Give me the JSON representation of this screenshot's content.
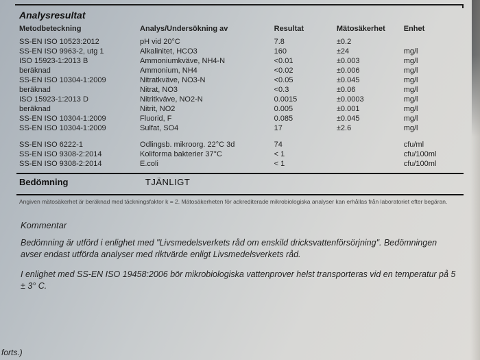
{
  "section_title": "Analysresultat",
  "headers": {
    "method": "Metodbeteckning",
    "analysis": "Analys/Undersökning av",
    "result": "Resultat",
    "uncertainty": "Mätosäkerhet",
    "unit": "Enhet"
  },
  "rows_a": [
    {
      "m": "SS-EN ISO 10523:2012",
      "a": "pH vid 20°C",
      "r": "7.8",
      "u": "±0.2",
      "e": ""
    },
    {
      "m": "SS-EN ISO 9963-2, utg 1",
      "a": "Alkalinitet, HCO3",
      "r": "160",
      "u": "±24",
      "e": "mg/l"
    },
    {
      "m": "ISO 15923-1:2013 B",
      "a": "Ammoniumkväve, NH4-N",
      "r": "<0.01",
      "u": "±0.003",
      "e": "mg/l"
    },
    {
      "m": "beräknad",
      "a": "Ammonium, NH4",
      "r": "<0.02",
      "u": "±0.006",
      "e": "mg/l"
    },
    {
      "m": "SS-EN ISO 10304-1:2009",
      "a": "Nitratkväve, NO3-N",
      "r": "<0.05",
      "u": "±0.045",
      "e": "mg/l"
    },
    {
      "m": "beräknad",
      "a": "Nitrat, NO3",
      "r": "<0.3",
      "u": "±0.06",
      "e": "mg/l"
    },
    {
      "m": "ISO 15923-1:2013 D",
      "a": "Nitritkväve, NO2-N",
      "r": "0.0015",
      "u": "±0.0003",
      "e": "mg/l"
    },
    {
      "m": "beräknad",
      "a": "Nitrit, NO2",
      "r": "0.005",
      "u": "±0.001",
      "e": "mg/l"
    },
    {
      "m": "SS-EN ISO 10304-1:2009",
      "a": "Fluorid, F",
      "r": "0.085",
      "u": "±0.045",
      "e": "mg/l"
    },
    {
      "m": "SS-EN ISO 10304-1:2009",
      "a": "Sulfat, SO4",
      "r": "17",
      "u": "±2.6",
      "e": "mg/l"
    }
  ],
  "rows_b": [
    {
      "m": "SS-EN ISO 6222-1",
      "a": "Odlingsb. mikroorg. 22°C 3d",
      "r": "74",
      "u": "",
      "e": "cfu/ml"
    },
    {
      "m": "SS-EN ISO 9308-2:2014",
      "a": "Koliforma bakterier 37°C",
      "r": "< 1",
      "u": "",
      "e": "cfu/100ml"
    },
    {
      "m": "SS-EN ISO 9308-2:2014",
      "a": "E.coli",
      "r": "< 1",
      "u": "",
      "e": "cfu/100ml"
    }
  ],
  "assessment": {
    "label": "Bedömning",
    "value": "TJÄNLIGT"
  },
  "finenote": "Angiven mätosäkerhet är beräknad med täckningsfaktor k = 2. Mätosäkerheten för ackrediterade mikrobiologiska analyser kan erhållas från laboratoriet efter begäran.",
  "comment": {
    "heading": "Kommentar",
    "p1": "Bedömning är utförd i enlighet med \"Livsmedelsverkets råd om enskild dricksvattenförsörjning\". Bedömningen avser endast utförda analyser med riktvärde enligt Livsmedelsverkets råd.",
    "p2": "I enlighet med SS-EN ISO 19458:2006 bör mikrobiologiska vattenprover helst transporteras vid en temperatur på 5 ± 3° C."
  },
  "forts": "forts.)"
}
